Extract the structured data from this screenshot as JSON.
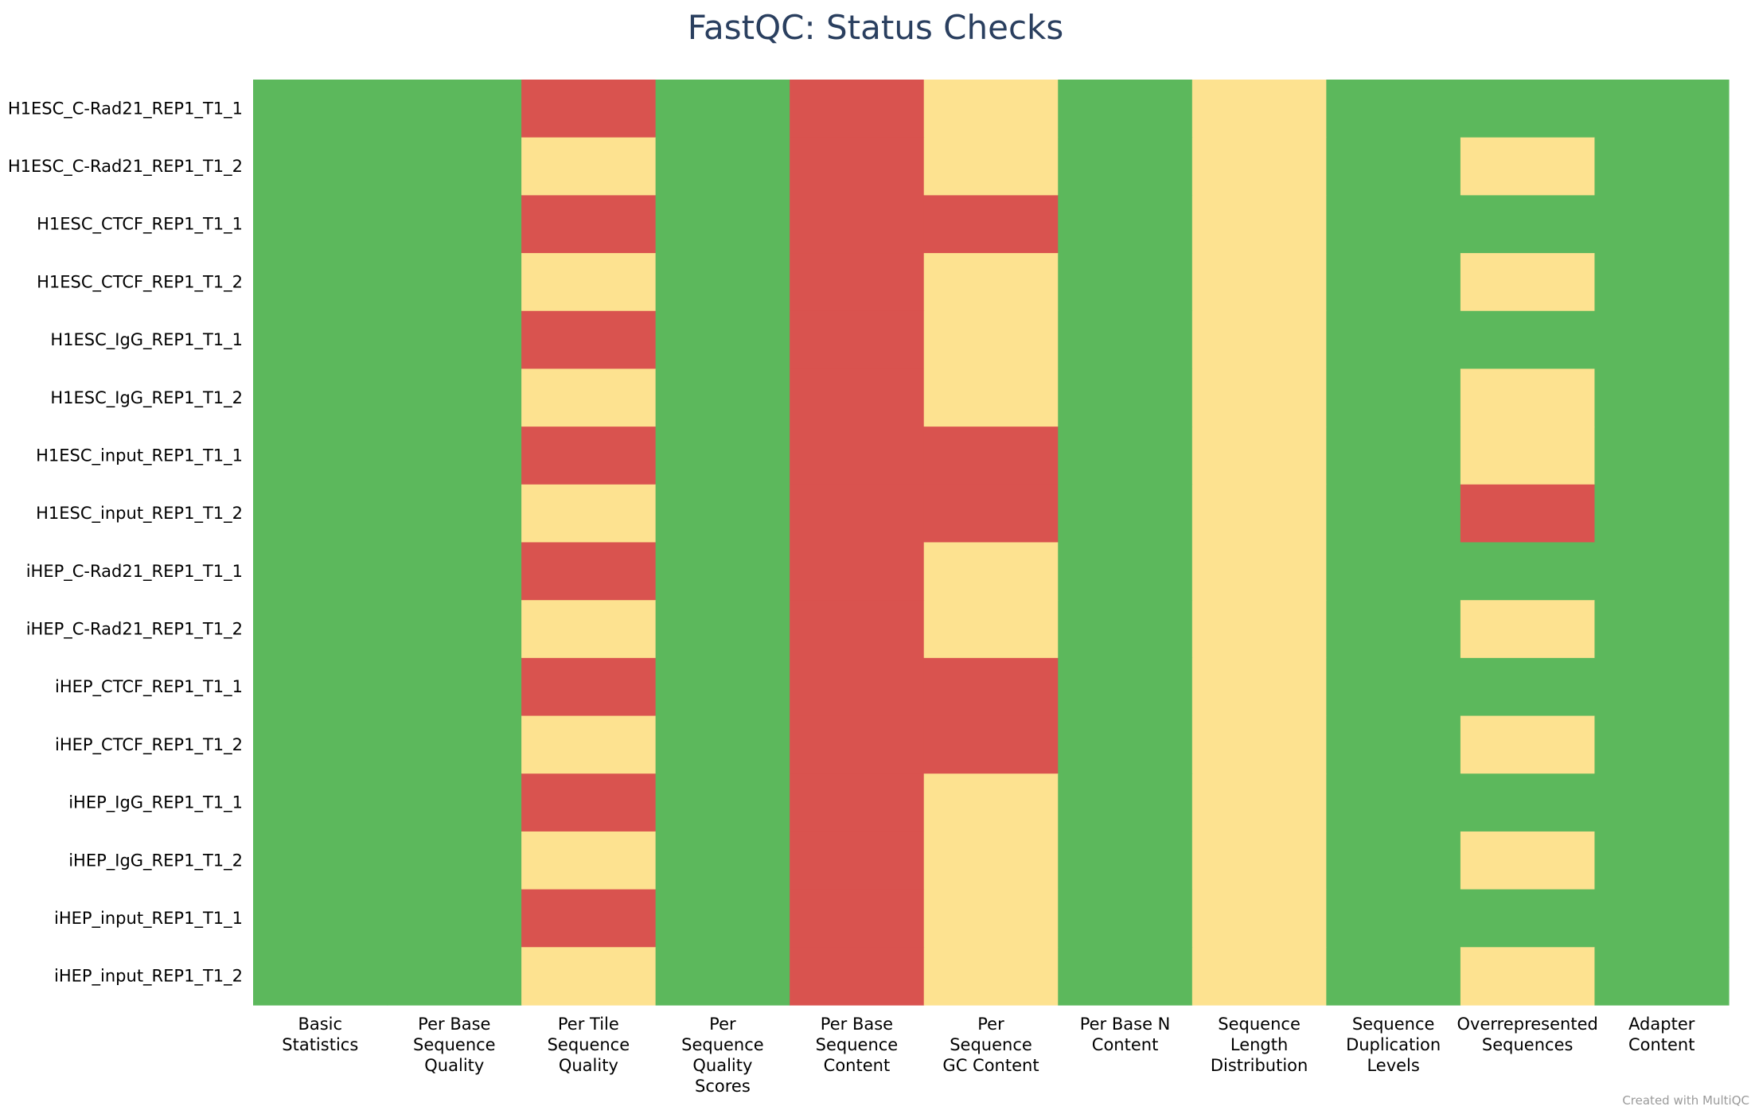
{
  "chart_data": {
    "type": "heatmap",
    "title": "FastQC: Status Checks",
    "xlabel": "",
    "ylabel": "",
    "columns": [
      [
        "Basic",
        "Statistics"
      ],
      [
        "Per Base",
        "Sequence",
        "Quality"
      ],
      [
        "Per Tile",
        "Sequence",
        "Quality"
      ],
      [
        "Per",
        "Sequence",
        "Quality",
        "Scores"
      ],
      [
        "Per Base",
        "Sequence",
        "Content"
      ],
      [
        "Per",
        "Sequence",
        "GC Content"
      ],
      [
        "Per Base N",
        "Content"
      ],
      [
        "Sequence",
        "Length",
        "Distribution"
      ],
      [
        "Sequence",
        "Duplication",
        "Levels"
      ],
      [
        "Overrepresented",
        "Sequences"
      ],
      [
        "Adapter",
        "Content"
      ]
    ],
    "rows": [
      "H1ESC_C-Rad21_REP1_T1_1",
      "H1ESC_C-Rad21_REP1_T1_2",
      "H1ESC_CTCF_REP1_T1_1",
      "H1ESC_CTCF_REP1_T1_2",
      "H1ESC_IgG_REP1_T1_1",
      "H1ESC_IgG_REP1_T1_2",
      "H1ESC_input_REP1_T1_1",
      "H1ESC_input_REP1_T1_2",
      "iHEP_C-Rad21_REP1_T1_1",
      "iHEP_C-Rad21_REP1_T1_2",
      "iHEP_CTCF_REP1_T1_1",
      "iHEP_CTCF_REP1_T1_2",
      "iHEP_IgG_REP1_T1_1",
      "iHEP_IgG_REP1_T1_2",
      "iHEP_input_REP1_T1_1",
      "iHEP_input_REP1_T1_2"
    ],
    "values": [
      [
        "pass",
        "pass",
        "fail",
        "pass",
        "fail",
        "warn",
        "pass",
        "warn",
        "pass",
        "pass",
        "pass"
      ],
      [
        "pass",
        "pass",
        "warn",
        "pass",
        "fail",
        "warn",
        "pass",
        "warn",
        "pass",
        "warn",
        "pass"
      ],
      [
        "pass",
        "pass",
        "fail",
        "pass",
        "fail",
        "fail",
        "pass",
        "warn",
        "pass",
        "pass",
        "pass"
      ],
      [
        "pass",
        "pass",
        "warn",
        "pass",
        "fail",
        "warn",
        "pass",
        "warn",
        "pass",
        "warn",
        "pass"
      ],
      [
        "pass",
        "pass",
        "fail",
        "pass",
        "fail",
        "warn",
        "pass",
        "warn",
        "pass",
        "pass",
        "pass"
      ],
      [
        "pass",
        "pass",
        "warn",
        "pass",
        "fail",
        "warn",
        "pass",
        "warn",
        "pass",
        "warn",
        "pass"
      ],
      [
        "pass",
        "pass",
        "fail",
        "pass",
        "fail",
        "fail",
        "pass",
        "warn",
        "pass",
        "warn",
        "pass"
      ],
      [
        "pass",
        "pass",
        "warn",
        "pass",
        "fail",
        "fail",
        "pass",
        "warn",
        "pass",
        "fail",
        "pass"
      ],
      [
        "pass",
        "pass",
        "fail",
        "pass",
        "fail",
        "warn",
        "pass",
        "warn",
        "pass",
        "pass",
        "pass"
      ],
      [
        "pass",
        "pass",
        "warn",
        "pass",
        "fail",
        "warn",
        "pass",
        "warn",
        "pass",
        "warn",
        "pass"
      ],
      [
        "pass",
        "pass",
        "fail",
        "pass",
        "fail",
        "fail",
        "pass",
        "warn",
        "pass",
        "pass",
        "pass"
      ],
      [
        "pass",
        "pass",
        "warn",
        "pass",
        "fail",
        "fail",
        "pass",
        "warn",
        "pass",
        "warn",
        "pass"
      ],
      [
        "pass",
        "pass",
        "fail",
        "pass",
        "fail",
        "warn",
        "pass",
        "warn",
        "pass",
        "pass",
        "pass"
      ],
      [
        "pass",
        "pass",
        "warn",
        "pass",
        "fail",
        "warn",
        "pass",
        "warn",
        "pass",
        "warn",
        "pass"
      ],
      [
        "pass",
        "pass",
        "fail",
        "pass",
        "fail",
        "warn",
        "pass",
        "warn",
        "pass",
        "pass",
        "pass"
      ],
      [
        "pass",
        "pass",
        "warn",
        "pass",
        "fail",
        "warn",
        "pass",
        "warn",
        "pass",
        "warn",
        "pass"
      ]
    ],
    "status_colors": {
      "pass": "#5cb85c",
      "warn": "#fde290",
      "fail": "#d9534f"
    },
    "grid": false,
    "legend": "none"
  },
  "credit": "Created with MultiQC"
}
